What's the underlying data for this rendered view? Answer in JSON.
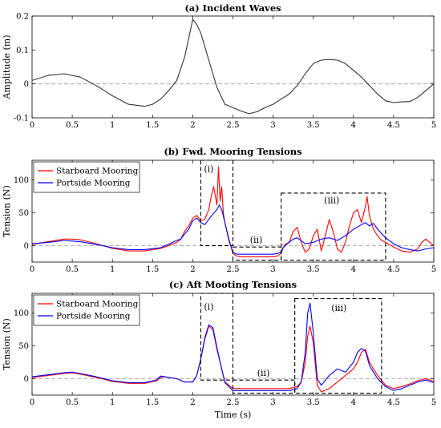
{
  "chart_data": [
    {
      "type": "line",
      "title": "(a) Incident Waves",
      "xlabel": "",
      "ylabel": "Amplitude (m)",
      "xlim": [
        0,
        5
      ],
      "ylim": [
        -0.1,
        0.2
      ],
      "xticks": [
        "0",
        "0.5",
        "1",
        "1.5",
        "2",
        "2.5",
        "3",
        "3.5",
        "4",
        "4.5",
        "5"
      ],
      "yticks": [
        "-0.1",
        "0",
        "0.1",
        "0.2"
      ],
      "grid": false,
      "series": [
        {
          "color": "#333333",
          "x": [
            0,
            0.2,
            0.4,
            0.6,
            0.8,
            1.0,
            1.2,
            1.4,
            1.5,
            1.6,
            1.7,
            1.8,
            1.9,
            2.0,
            2.05,
            2.1,
            2.2,
            2.3,
            2.4,
            2.5,
            2.6,
            2.7,
            2.8,
            2.9,
            3.0,
            3.1,
            3.2,
            3.3,
            3.4,
            3.5,
            3.6,
            3.7,
            3.8,
            3.9,
            4.0,
            4.1,
            4.2,
            4.3,
            4.4,
            4.5,
            4.6,
            4.7,
            4.8,
            4.9,
            5.0
          ],
          "y": [
            0.01,
            0.025,
            0.03,
            0.02,
            -0.005,
            -0.035,
            -0.06,
            -0.066,
            -0.06,
            -0.045,
            -0.02,
            0.01,
            0.08,
            0.19,
            0.175,
            0.15,
            0.07,
            -0.01,
            -0.06,
            -0.07,
            -0.08,
            -0.088,
            -0.082,
            -0.07,
            -0.06,
            -0.045,
            -0.03,
            -0.005,
            0.03,
            0.06,
            0.07,
            0.072,
            0.07,
            0.06,
            0.04,
            0.02,
            -0.005,
            -0.03,
            -0.05,
            -0.055,
            -0.053,
            -0.052,
            -0.04,
            -0.02,
            0.0
          ]
        }
      ]
    },
    {
      "type": "line",
      "title": "(b) Fwd. Mooring Tensions",
      "xlabel": "",
      "ylabel": "Tension (N)",
      "xlim": [
        0,
        5
      ],
      "ylim": [
        -25,
        130
      ],
      "xticks": [
        "0",
        "0.5",
        "1",
        "1.5",
        "2",
        "2.5",
        "3",
        "3.5",
        "4",
        "4.5",
        "5"
      ],
      "yticks": [
        "0",
        "50",
        "100"
      ],
      "grid": false,
      "legend": "top-left",
      "series": [
        {
          "name": "Starboard Mooring",
          "color": "#ff0000",
          "x": [
            0,
            0.2,
            0.4,
            0.5,
            0.6,
            0.8,
            1.0,
            1.2,
            1.4,
            1.6,
            1.7,
            1.8,
            1.85,
            1.9,
            1.95,
            2.0,
            2.05,
            2.1,
            2.15,
            2.2,
            2.23,
            2.26,
            2.3,
            2.32,
            2.34,
            2.36,
            2.38,
            2.4,
            2.45,
            2.5,
            2.55,
            2.6,
            2.7,
            2.8,
            2.9,
            3.0,
            3.05,
            3.1,
            3.12,
            3.15,
            3.2,
            3.25,
            3.3,
            3.35,
            3.4,
            3.45,
            3.5,
            3.55,
            3.6,
            3.65,
            3.7,
            3.75,
            3.8,
            3.85,
            3.9,
            3.95,
            4.0,
            4.05,
            4.1,
            4.15,
            4.17,
            4.2,
            4.25,
            4.3,
            4.35,
            4.4,
            4.5,
            4.6,
            4.7,
            4.8,
            4.85,
            4.9,
            4.95,
            5.0
          ],
          "y": [
            2,
            6,
            10,
            10,
            9,
            3,
            -4,
            -8,
            -8,
            -4,
            0,
            5,
            10,
            22,
            30,
            42,
            46,
            38,
            40,
            55,
            75,
            90,
            62,
            120,
            68,
            90,
            50,
            35,
            10,
            -12,
            -16,
            -17,
            -17,
            -17,
            -17,
            -17,
            -16,
            -12,
            -5,
            2,
            5,
            22,
            28,
            5,
            -10,
            -5,
            15,
            25,
            -8,
            15,
            40,
            20,
            -5,
            -10,
            5,
            30,
            50,
            55,
            35,
            60,
            75,
            45,
            25,
            15,
            8,
            5,
            -2,
            -8,
            -10,
            -5,
            5,
            10,
            5,
            0
          ]
        },
        {
          "name": "Portside Mooring",
          "color": "#0000ff",
          "x": [
            0,
            0.2,
            0.4,
            0.5,
            0.6,
            0.8,
            1.0,
            1.2,
            1.4,
            1.6,
            1.7,
            1.8,
            1.85,
            1.9,
            1.95,
            2.0,
            2.05,
            2.1,
            2.15,
            2.2,
            2.25,
            2.3,
            2.33,
            2.36,
            2.4,
            2.45,
            2.5,
            2.55,
            2.6,
            2.7,
            2.8,
            2.9,
            3.0,
            3.05,
            3.1,
            3.12,
            3.15,
            3.2,
            3.25,
            3.3,
            3.4,
            3.5,
            3.6,
            3.7,
            3.8,
            3.9,
            4.0,
            4.1,
            4.15,
            4.2,
            4.25,
            4.3,
            4.4,
            4.5,
            4.6,
            4.7,
            4.8,
            4.9,
            5.0
          ],
          "y": [
            3,
            5,
            8,
            7,
            6,
            2,
            -3,
            -6,
            -6,
            -3,
            2,
            8,
            10,
            18,
            25,
            38,
            42,
            35,
            32,
            40,
            48,
            55,
            62,
            55,
            35,
            8,
            -10,
            -13,
            -13,
            -13,
            -13,
            -13,
            -13,
            -12,
            -10,
            -4,
            0,
            5,
            10,
            12,
            3,
            5,
            10,
            12,
            8,
            15,
            25,
            32,
            35,
            30,
            34,
            25,
            12,
            3,
            -3,
            -6,
            -8,
            -5,
            -3
          ]
        }
      ],
      "annotations": [
        "(i)",
        "(ii)",
        "(iii)"
      ]
    },
    {
      "type": "line",
      "title": "(c) Aft Mooting Tensions",
      "xlabel": "Time (s)",
      "ylabel": "Tension (N)",
      "xlim": [
        0,
        5
      ],
      "ylim": [
        -25,
        130
      ],
      "xticks": [
        "0",
        "0.5",
        "1",
        "1.5",
        "2",
        "2.5",
        "3",
        "3.5",
        "4",
        "4.5",
        "5"
      ],
      "yticks": [
        "0",
        "50",
        "100"
      ],
      "grid": false,
      "legend": "top-left",
      "series": [
        {
          "name": "Starboard Mooring",
          "color": "#ff0000",
          "x": [
            0,
            0.2,
            0.4,
            0.5,
            0.6,
            0.8,
            1.0,
            1.2,
            1.4,
            1.55,
            1.6,
            1.65,
            1.8,
            1.9,
            2.0,
            2.05,
            2.1,
            2.15,
            2.2,
            2.25,
            2.3,
            2.35,
            2.4,
            2.5,
            2.6,
            2.8,
            3.0,
            3.2,
            3.3,
            3.35,
            3.4,
            3.43,
            3.46,
            3.5,
            3.55,
            3.6,
            3.7,
            3.8,
            3.9,
            4.0,
            4.05,
            4.1,
            4.15,
            4.2,
            4.25,
            4.3,
            4.4,
            4.5,
            4.6,
            4.7,
            4.8,
            4.9,
            5.0
          ],
          "y": [
            2,
            5,
            8,
            9,
            7,
            2,
            -4,
            -7,
            -7,
            -3,
            2,
            3,
            0,
            -5,
            -5,
            5,
            30,
            60,
            80,
            75,
            45,
            20,
            -5,
            -15,
            -15,
            -15,
            -15,
            -15,
            -12,
            -5,
            25,
            65,
            80,
            55,
            -10,
            -20,
            -15,
            -5,
            5,
            15,
            25,
            40,
            45,
            25,
            15,
            5,
            -10,
            -15,
            -12,
            -8,
            -3,
            0,
            -4
          ]
        },
        {
          "name": "Portside Mooring",
          "color": "#0000ff",
          "x": [
            0,
            0.2,
            0.4,
            0.5,
            0.6,
            0.8,
            1.0,
            1.2,
            1.4,
            1.55,
            1.6,
            1.65,
            1.8,
            1.9,
            2.0,
            2.05,
            2.1,
            2.15,
            2.2,
            2.25,
            2.3,
            2.35,
            2.4,
            2.5,
            2.6,
            2.8,
            3.0,
            3.2,
            3.3,
            3.35,
            3.4,
            3.43,
            3.46,
            3.5,
            3.55,
            3.6,
            3.7,
            3.8,
            3.9,
            4.0,
            4.05,
            4.1,
            4.15,
            4.2,
            4.25,
            4.3,
            4.4,
            4.5,
            4.6,
            4.7,
            4.8,
            4.9,
            5.0
          ],
          "y": [
            3,
            6,
            9,
            10,
            8,
            3,
            -3,
            -6,
            -6,
            -2,
            4,
            3,
            0,
            -5,
            -5,
            5,
            30,
            62,
            82,
            78,
            48,
            20,
            -6,
            -18,
            -18,
            -18,
            -18,
            -18,
            -15,
            -5,
            40,
            100,
            115,
            70,
            0,
            -10,
            5,
            15,
            10,
            25,
            40,
            46,
            42,
            20,
            10,
            0,
            -12,
            -18,
            -15,
            -10,
            -5,
            -2,
            -6
          ]
        }
      ],
      "annotations": [
        "(i)",
        "(ii)",
        "(iii)"
      ]
    }
  ]
}
